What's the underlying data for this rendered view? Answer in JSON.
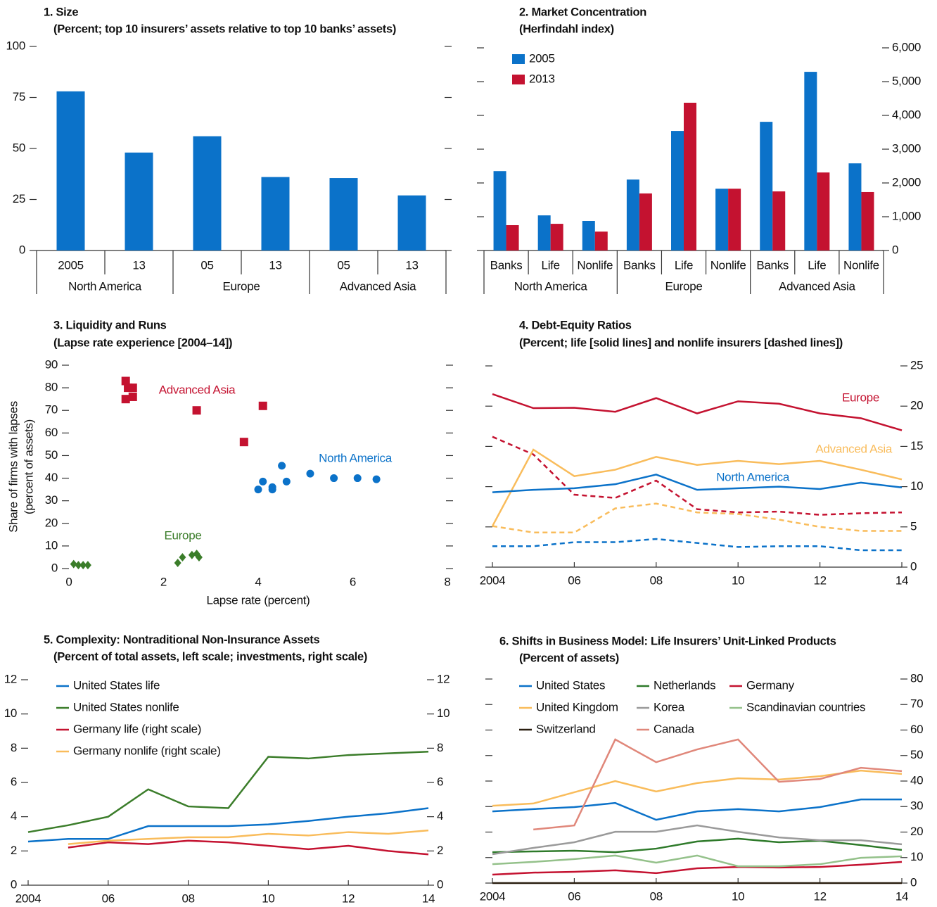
{
  "chart_data": [
    {
      "type": "bar",
      "title": "1. Size",
      "subtitle": "(Percent; top 10 insurers’ assets relative to top 10 banks’ assets)",
      "categories": [
        "2005",
        "13",
        "05",
        "13",
        "05",
        "13"
      ],
      "groups": [
        "North America",
        "Europe",
        "Advanced Asia"
      ],
      "values": [
        78,
        48,
        56,
        36,
        35.5,
        27
      ],
      "color": "#0b72c9",
      "ylim": [
        0,
        100
      ],
      "yticks": [
        0,
        25,
        50,
        75,
        100
      ]
    },
    {
      "type": "grouped_bar",
      "title": "2. Market Concentration",
      "subtitle": "(Herfindahl index)",
      "categories": [
        "Banks",
        "Life",
        "Nonlife",
        "Banks",
        "Life",
        "Nonlife",
        "Banks",
        "Life",
        "Nonlife"
      ],
      "groups": [
        "North America",
        "Europe",
        "Advanced Asia"
      ],
      "series": [
        {
          "name": "2005",
          "color": "#0b72c9",
          "values": [
            2350,
            1040,
            875,
            2100,
            3540,
            1830,
            3810,
            5290,
            2580
          ]
        },
        {
          "name": "2013",
          "color": "#c41230",
          "values": [
            750,
            790,
            560,
            1690,
            4375,
            1830,
            1750,
            2310,
            1730
          ]
        }
      ],
      "ylim": [
        0,
        6000
      ],
      "yticks": [
        0,
        {
          "value": 1000,
          "label": "1,000"
        },
        {
          "value": 2000,
          "label": "2,000"
        },
        {
          "value": 3000,
          "label": "3,000"
        },
        {
          "value": 4000,
          "label": "4,000"
        },
        {
          "value": 5000,
          "label": "5,000"
        },
        {
          "value": 6000,
          "label": "6,000"
        }
      ],
      "legend": "upper left"
    },
    {
      "type": "scatter",
      "title": "3. Liquidity and Runs",
      "subtitle": "(Lapse rate experience [2004–14])",
      "xlabel": "Lapse rate (percent)",
      "ylabel": [
        "Share of firms with lapses",
        "(percent of assets)"
      ],
      "xlim": [
        0,
        8
      ],
      "xticks": [
        0,
        2,
        4,
        6,
        8
      ],
      "ylim": [
        0,
        90
      ],
      "yticks": [
        0,
        10,
        20,
        30,
        40,
        50,
        60,
        70,
        80,
        90
      ],
      "series": [
        {
          "name": "Advanced Asia",
          "color": "#c41230",
          "marker": "square",
          "x": [
            1.2,
            1.25,
            1.35,
            1.2,
            1.35,
            2.7,
            3.7,
            4.1
          ],
          "values": [
            83,
            80,
            80,
            75,
            76,
            70,
            56,
            72
          ]
        },
        {
          "name": "North America",
          "color": "#0b72c9",
          "marker": "circle",
          "x": [
            4.0,
            4.1,
            4.3,
            4.3,
            4.5,
            4.6,
            5.1,
            5.6,
            6.1,
            6.5
          ],
          "values": [
            35,
            38.5,
            36,
            35,
            45.5,
            38.5,
            42,
            40,
            40,
            39.5
          ]
        },
        {
          "name": "Europe",
          "color": "#3b7d2a",
          "marker": "diamond",
          "x": [
            0.1,
            0.2,
            0.3,
            0.4,
            2.3,
            2.4,
            2.6,
            2.7,
            2.75
          ],
          "values": [
            2,
            1.5,
            1.5,
            1.5,
            2.5,
            5,
            6,
            6.5,
            5
          ]
        }
      ]
    },
    {
      "type": "line",
      "title": "4. Debt-Equity Ratios",
      "subtitle": "(Percent; life [solid lines] and nonlife insurers [dashed lines])",
      "x": [
        2004,
        2005,
        2006,
        2007,
        2008,
        2009,
        2010,
        2011,
        2012,
        2013,
        2014
      ],
      "xlim": [
        2004,
        2014
      ],
      "xticks": [
        2004,
        {
          "value": 2006,
          "label": "06"
        },
        {
          "value": 2008,
          "label": "08"
        },
        {
          "value": 2010,
          "label": "10"
        },
        {
          "value": 2012,
          "label": "12"
        },
        {
          "value": 2014,
          "label": "14"
        }
      ],
      "ylim": [
        0,
        25
      ],
      "yticks": [
        0,
        5,
        10,
        15,
        20,
        25
      ],
      "series": [
        {
          "name": "Europe",
          "color": "#c41230",
          "values": [
            21.5,
            19.75,
            19.8,
            19.3,
            21,
            19.1,
            20.6,
            20.3,
            19.1,
            18.5,
            17
          ],
          "dashed_values": [
            16.2,
            14,
            9,
            8.6,
            10.75,
            7.2,
            6.8,
            6.9,
            6.5,
            6.7,
            6.8
          ]
        },
        {
          "name": "Advanced Asia",
          "color": "#f9bc5b",
          "values": [
            5.1,
            14.6,
            11.3,
            12.1,
            13.7,
            12.7,
            13.2,
            12.8,
            13.2,
            12.1,
            10.9
          ],
          "dashed_values": [
            5.1,
            4.3,
            4.3,
            7.3,
            7.9,
            6.8,
            6.6,
            5.9,
            5,
            4.5,
            4.5
          ]
        },
        {
          "name": "North America",
          "color": "#0b72c9",
          "values": [
            9.3,
            9.6,
            9.8,
            10.3,
            11.5,
            9.6,
            9.8,
            10,
            9.7,
            10.5,
            9.9
          ],
          "dashed_values": [
            2.6,
            2.6,
            3.1,
            3.1,
            3.5,
            3,
            2.5,
            2.6,
            2.6,
            2.1,
            2.1
          ]
        }
      ]
    },
    {
      "type": "line",
      "title": "5. Complexity: Nontraditional Non-Insurance Assets",
      "subtitle": "(Percent of total assets, left scale; investments, right scale)",
      "x": [
        2004,
        2005,
        2006,
        2007,
        2008,
        2009,
        2010,
        2011,
        2012,
        2013,
        2014
      ],
      "xlim": [
        2004,
        2014
      ],
      "xticks": [
        2004,
        {
          "value": 2006,
          "label": "06"
        },
        {
          "value": 2008,
          "label": "08"
        },
        {
          "value": 2010,
          "label": "10"
        },
        {
          "value": 2012,
          "label": "12"
        },
        {
          "value": 2014,
          "label": "14"
        }
      ],
      "ylim": [
        0,
        12
      ],
      "yticks": [
        0,
        2,
        4,
        6,
        8,
        10,
        12
      ],
      "y2lim": [
        0,
        12
      ],
      "y2ticks": [
        0,
        2,
        4,
        6,
        8,
        10,
        12
      ],
      "legend": "upper left",
      "series": [
        {
          "name": "United States life",
          "color": "#0b72c9",
          "values": [
            2.55,
            2.7,
            2.7,
            3.45,
            3.45,
            3.45,
            3.55,
            3.75,
            4.0,
            4.2,
            4.5
          ]
        },
        {
          "name": "United States nonlife",
          "color": "#3b7d2a",
          "values": [
            3.1,
            3.5,
            4.0,
            5.6,
            4.6,
            4.5,
            7.5,
            7.4,
            7.6,
            7.7,
            7.8
          ]
        },
        {
          "name": "Germany life (right scale)",
          "color": "#c41230",
          "axis": "y2",
          "values": [
            null,
            2.2,
            2.5,
            2.4,
            2.6,
            2.5,
            2.3,
            2.1,
            2.3,
            2.0,
            1.8
          ]
        },
        {
          "name": "Germany nonlife (right scale)",
          "color": "#f9bc5b",
          "axis": "y2",
          "values": [
            null,
            2.4,
            2.6,
            2.7,
            2.8,
            2.8,
            3.0,
            2.9,
            3.1,
            3.0,
            3.2
          ]
        }
      ]
    },
    {
      "type": "line",
      "title": "6. Shifts in Business Model: Life Insurers’ Unit-Linked Products",
      "subtitle": "(Percent of assets)",
      "x": [
        2004,
        2005,
        2006,
        2007,
        2008,
        2009,
        2010,
        2011,
        2012,
        2013,
        2014
      ],
      "xlim": [
        2004,
        2014
      ],
      "xticks": [
        2004,
        {
          "value": 2006,
          "label": "06"
        },
        {
          "value": 2008,
          "label": "08"
        },
        {
          "value": 2010,
          "label": "10"
        },
        {
          "value": 2012,
          "label": "12"
        },
        {
          "value": 2014,
          "label": "14"
        }
      ],
      "ylim": [
        0,
        80
      ],
      "yticks": [
        0,
        10,
        20,
        30,
        40,
        50,
        60,
        70,
        80
      ],
      "legend": "upper left",
      "series": [
        {
          "name": "United States",
          "color": "#0b72c9",
          "values": [
            28.1,
            29,
            29.8,
            31.4,
            24.8,
            28.1,
            29,
            28.1,
            29.8,
            32.8,
            32.8
          ]
        },
        {
          "name": "Netherlands",
          "color": "#2e7a2a",
          "values": [
            12.1,
            12.4,
            12.7,
            12.1,
            13.5,
            16.3,
            17.4,
            16,
            16.6,
            14.9,
            13
          ]
        },
        {
          "name": "Germany",
          "color": "#c41230",
          "values": [
            3.3,
            4.1,
            4.4,
            5,
            3.9,
            5.8,
            6.3,
            6.1,
            6.3,
            7.2,
            8.3
          ]
        },
        {
          "name": "United Kingdom",
          "color": "#f9bc5b",
          "values": [
            30.3,
            31.2,
            35.6,
            40,
            35.9,
            39.2,
            41.1,
            40.6,
            41.9,
            44.1,
            42.8
          ]
        },
        {
          "name": "Korea",
          "color": "#9a9a9a",
          "values": [
            11.3,
            13.8,
            16,
            20.1,
            20.1,
            22.6,
            20.1,
            17.9,
            16.8,
            16.8,
            15.2
          ]
        },
        {
          "name": "Scandinavian countries",
          "color": "#94c18a",
          "values": [
            7.4,
            8.3,
            9.4,
            10.8,
            8,
            10.8,
            6.6,
            6.6,
            7.4,
            9.9,
            10.5
          ]
        },
        {
          "name": "Switzerland",
          "color": "#2a1e10",
          "values": [
            0,
            0,
            0,
            0,
            0,
            0,
            0,
            0,
            0,
            0,
            0
          ]
        },
        {
          "name": "Canada",
          "color": "#e0877a",
          "values": [
            null,
            21,
            22.6,
            56.3,
            47.4,
            52.4,
            56.3,
            39.7,
            40.8,
            45.2,
            43.9
          ]
        }
      ]
    }
  ]
}
